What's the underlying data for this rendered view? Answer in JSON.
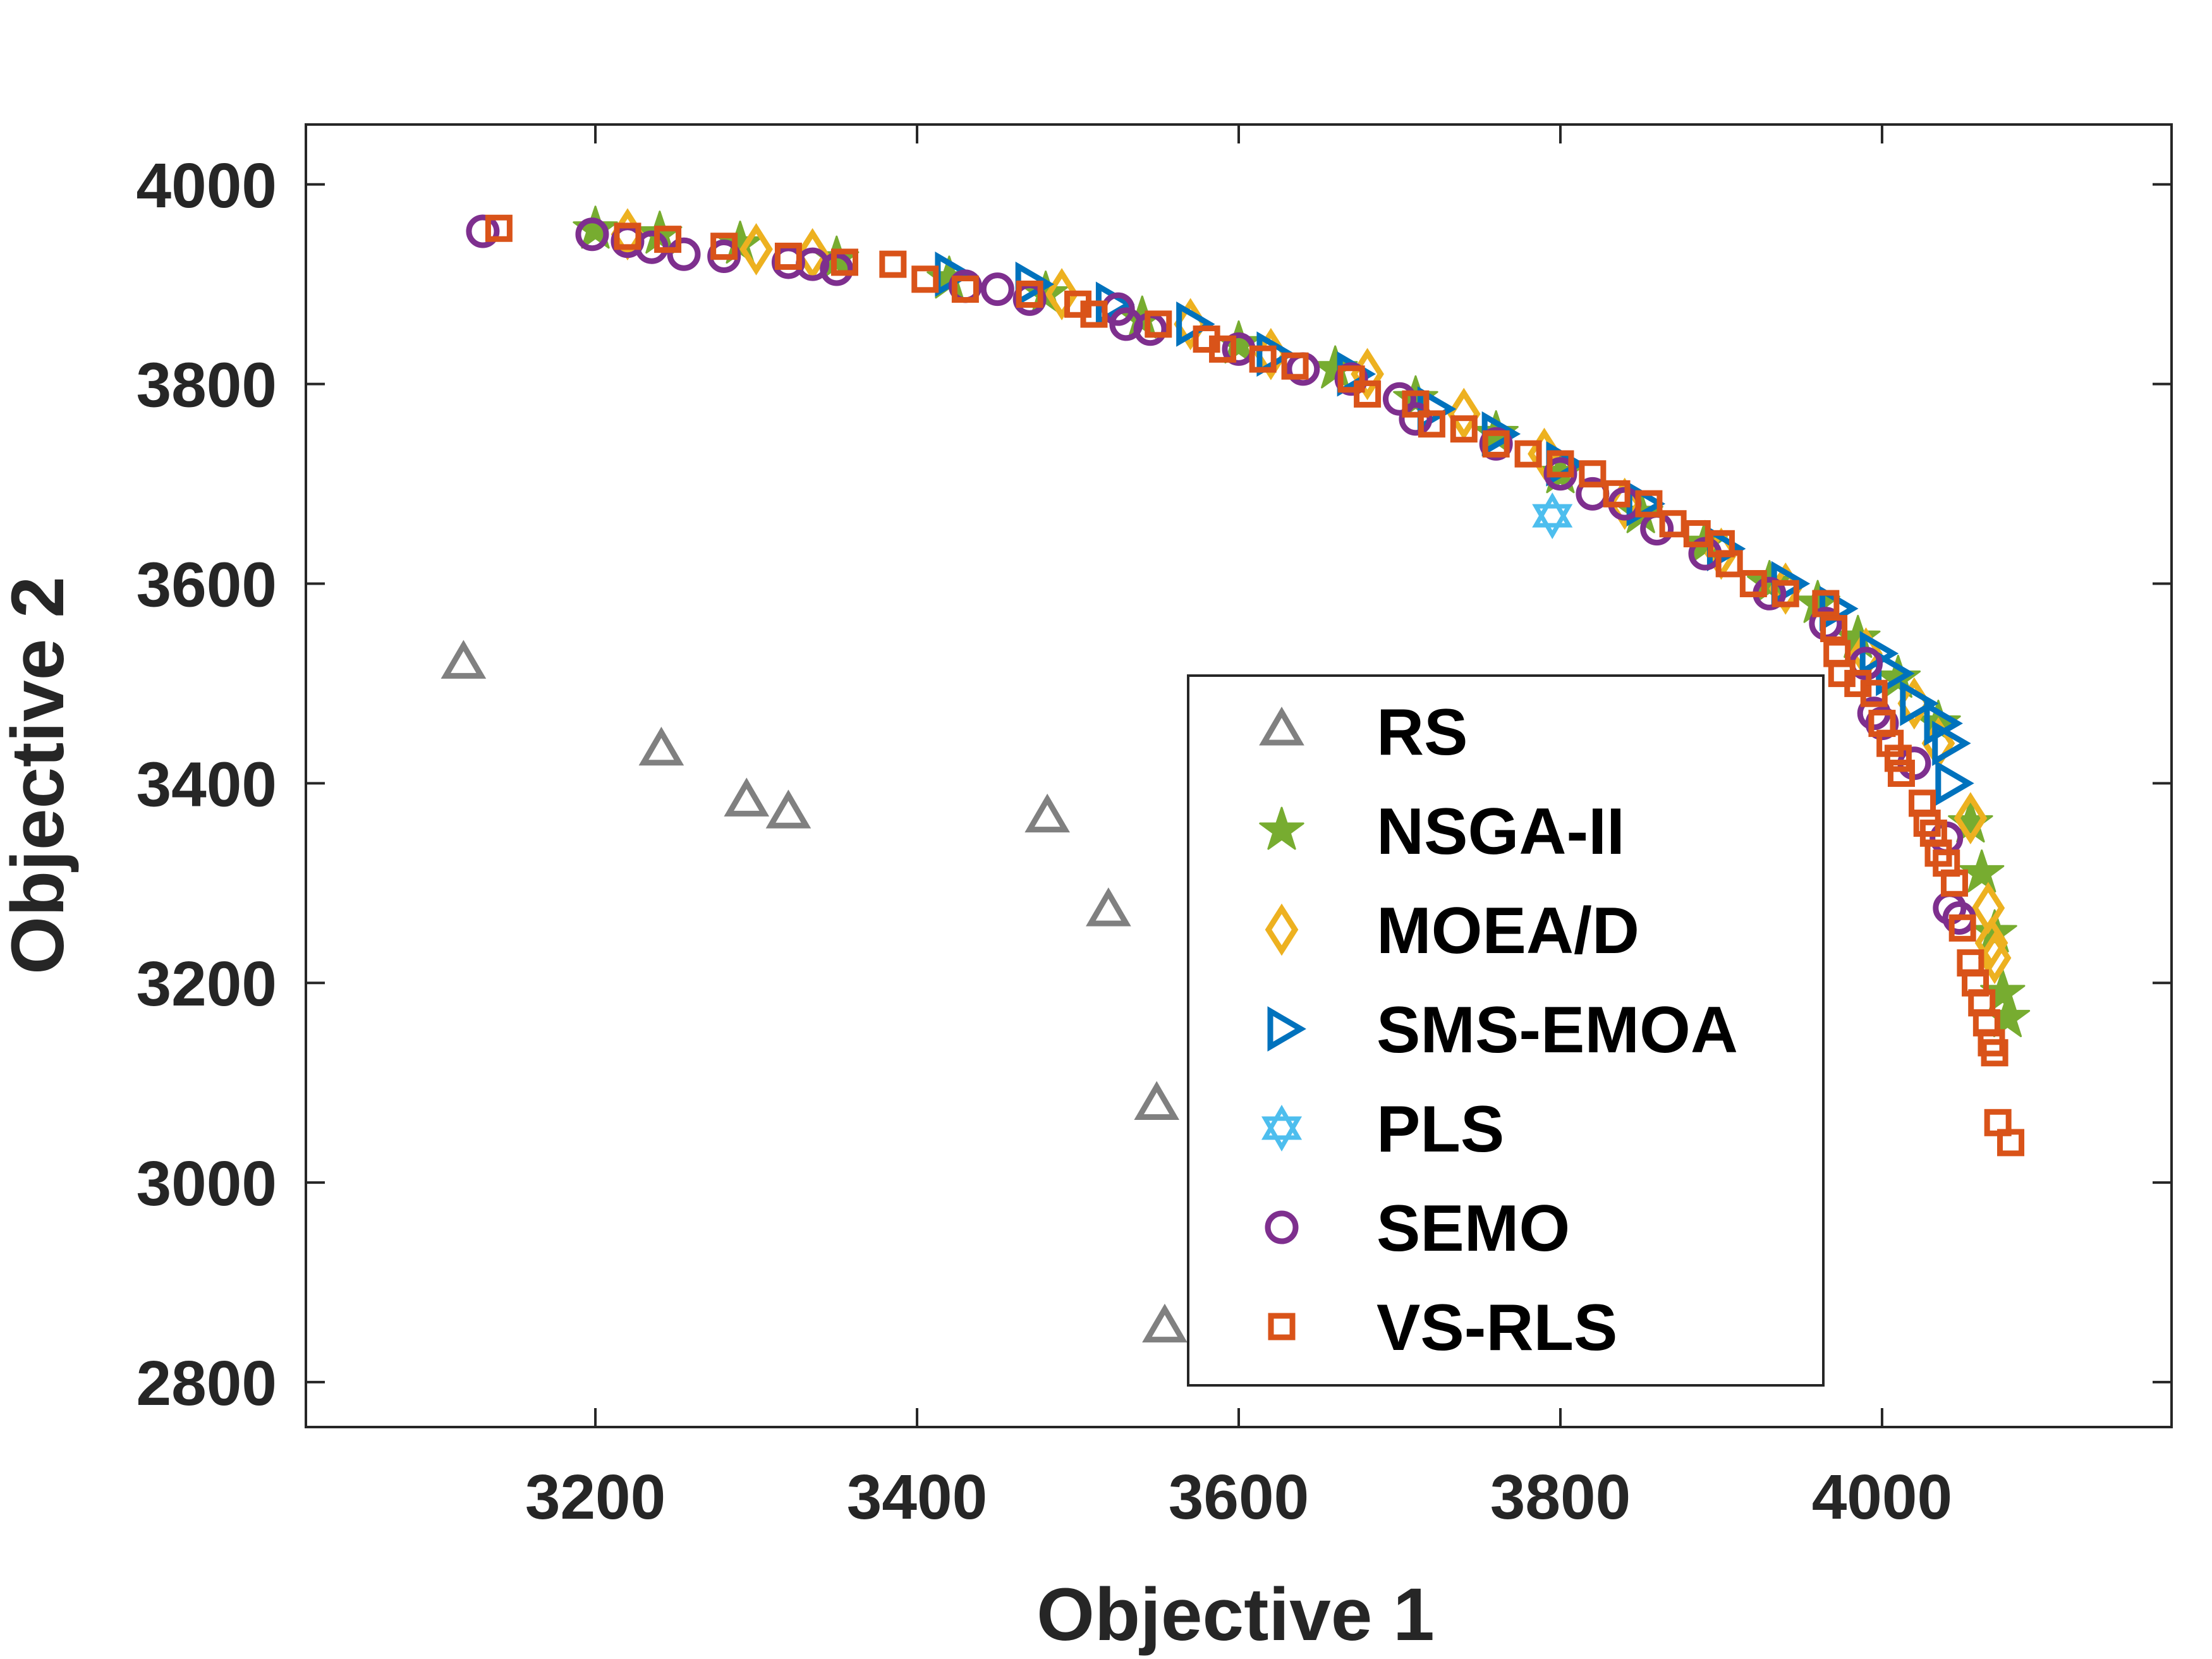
{
  "chart_data": {
    "type": "scatter",
    "title": "",
    "xlabel": "Objective 1",
    "ylabel": "Objective 2",
    "xlim": [
      3020,
      4180
    ],
    "ylim": [
      2755,
      4060
    ],
    "xticks": [
      3200,
      3400,
      3600,
      3800,
      4000
    ],
    "yticks": [
      2800,
      3000,
      3200,
      3400,
      3600,
      3800,
      4000
    ],
    "xtick_labels": [
      "3200",
      "3400",
      "3600",
      "3800",
      "4000"
    ],
    "ytick_labels": [
      "2800",
      "3000",
      "3200",
      "3400",
      "3600",
      "3800",
      "4000"
    ],
    "grid": false,
    "legend_position": "lower-right",
    "series": [
      {
        "name": "RS",
        "marker": "triangle-up",
        "color": "#808080",
        "points": [
          [
            3118,
            3519
          ],
          [
            3241,
            3432
          ],
          [
            3294,
            3381
          ],
          [
            3320,
            3369
          ],
          [
            3481,
            3365
          ],
          [
            3519,
            3271
          ],
          [
            3549,
            3077
          ],
          [
            3554,
            2854
          ]
        ]
      },
      {
        "name": "NSGA-II",
        "marker": "pentagram",
        "color": "#77AC30",
        "points": [
          [
            3200,
            3955
          ],
          [
            3240,
            3950
          ],
          [
            3290,
            3940
          ],
          [
            3350,
            3925
          ],
          [
            3420,
            3905
          ],
          [
            3480,
            3890
          ],
          [
            3540,
            3865
          ],
          [
            3600,
            3840
          ],
          [
            3660,
            3815
          ],
          [
            3710,
            3785
          ],
          [
            3760,
            3750
          ],
          [
            3800,
            3710
          ],
          [
            3850,
            3670
          ],
          [
            3890,
            3640
          ],
          [
            3930,
            3600
          ],
          [
            3960,
            3580
          ],
          [
            3985,
            3545
          ],
          [
            4010,
            3505
          ],
          [
            4035,
            3460
          ],
          [
            4055,
            3360
          ],
          [
            4062,
            3310
          ],
          [
            4070,
            3250
          ],
          [
            4075,
            3190
          ],
          [
            4078,
            3165
          ]
        ]
      },
      {
        "name": "MOEA/D",
        "marker": "diamond",
        "color": "#EDB120",
        "points": [
          [
            3220,
            3950
          ],
          [
            3300,
            3935
          ],
          [
            3335,
            3930
          ],
          [
            3490,
            3890
          ],
          [
            3570,
            3860
          ],
          [
            3620,
            3830
          ],
          [
            3680,
            3810
          ],
          [
            3740,
            3770
          ],
          [
            3790,
            3730
          ],
          [
            3840,
            3680
          ],
          [
            3900,
            3630
          ],
          [
            3940,
            3595
          ],
          [
            3990,
            3530
          ],
          [
            4020,
            3480
          ],
          [
            4035,
            3440
          ],
          [
            4055,
            3365
          ],
          [
            4066,
            3275
          ],
          [
            4068,
            3240
          ],
          [
            4070,
            3225
          ]
        ]
      },
      {
        "name": "SMS-EMOA",
        "marker": "triangle-right",
        "color": "#0072BD",
        "points": [
          [
            3420,
            3910
          ],
          [
            3470,
            3900
          ],
          [
            3520,
            3880
          ],
          [
            3570,
            3860
          ],
          [
            3620,
            3830
          ],
          [
            3670,
            3810
          ],
          [
            3720,
            3775
          ],
          [
            3760,
            3750
          ],
          [
            3800,
            3720
          ],
          [
            3850,
            3680
          ],
          [
            3900,
            3635
          ],
          [
            3940,
            3600
          ],
          [
            3970,
            3575
          ],
          [
            3995,
            3530
          ],
          [
            4005,
            3510
          ],
          [
            4020,
            3480
          ],
          [
            4035,
            3460
          ],
          [
            4040,
            3440
          ],
          [
            4042,
            3400
          ]
        ]
      },
      {
        "name": "PLS",
        "marker": "hexagram",
        "color": "#4DBEEE",
        "points": [
          [
            3795,
            3668
          ]
        ]
      },
      {
        "name": "SEMO",
        "marker": "circle",
        "color": "#7E2F8E",
        "points": [
          [
            3130,
            3953
          ],
          [
            3198,
            3950
          ],
          [
            3220,
            3943
          ],
          [
            3235,
            3937
          ],
          [
            3255,
            3930
          ],
          [
            3280,
            3928
          ],
          [
            3320,
            3922
          ],
          [
            3335,
            3920
          ],
          [
            3350,
            3915
          ],
          [
            3430,
            3898
          ],
          [
            3450,
            3895
          ],
          [
            3470,
            3885
          ],
          [
            3525,
            3875
          ],
          [
            3530,
            3860
          ],
          [
            3545,
            3855
          ],
          [
            3600,
            3835
          ],
          [
            3640,
            3815
          ],
          [
            3670,
            3805
          ],
          [
            3700,
            3785
          ],
          [
            3710,
            3765
          ],
          [
            3760,
            3740
          ],
          [
            3800,
            3710
          ],
          [
            3820,
            3690
          ],
          [
            3840,
            3680
          ],
          [
            3860,
            3655
          ],
          [
            3890,
            3630
          ],
          [
            3930,
            3590
          ],
          [
            3965,
            3560
          ],
          [
            3990,
            3520
          ],
          [
            3995,
            3470
          ],
          [
            4000,
            3460
          ],
          [
            4020,
            3420
          ],
          [
            4040,
            3345
          ],
          [
            4042,
            3275
          ],
          [
            4048,
            3265
          ]
        ]
      },
      {
        "name": "VS-RLS",
        "marker": "square",
        "color": "#D95319",
        "points": [
          [
            3140,
            3956
          ],
          [
            3220,
            3948
          ],
          [
            3245,
            3945
          ],
          [
            3280,
            3938
          ],
          [
            3320,
            3928
          ],
          [
            3355,
            3922
          ],
          [
            3385,
            3920
          ],
          [
            3405,
            3905
          ],
          [
            3430,
            3895
          ],
          [
            3470,
            3890
          ],
          [
            3500,
            3880
          ],
          [
            3510,
            3870
          ],
          [
            3550,
            3860
          ],
          [
            3580,
            3845
          ],
          [
            3590,
            3835
          ],
          [
            3615,
            3825
          ],
          [
            3635,
            3818
          ],
          [
            3670,
            3805
          ],
          [
            3680,
            3790
          ],
          [
            3710,
            3780
          ],
          [
            3720,
            3760
          ],
          [
            3740,
            3755
          ],
          [
            3760,
            3740
          ],
          [
            3780,
            3730
          ],
          [
            3800,
            3720
          ],
          [
            3820,
            3710
          ],
          [
            3835,
            3690
          ],
          [
            3855,
            3680
          ],
          [
            3870,
            3660
          ],
          [
            3885,
            3650
          ],
          [
            3900,
            3640
          ],
          [
            3905,
            3620
          ],
          [
            3920,
            3600
          ],
          [
            3940,
            3590
          ],
          [
            3965,
            3580
          ],
          [
            3970,
            3555
          ],
          [
            3972,
            3530
          ],
          [
            3975,
            3510
          ],
          [
            3985,
            3500
          ],
          [
            3995,
            3490
          ],
          [
            4000,
            3460
          ],
          [
            4005,
            3440
          ],
          [
            4010,
            3425
          ],
          [
            4012,
            3410
          ],
          [
            4025,
            3380
          ],
          [
            4028,
            3360
          ],
          [
            4032,
            3350
          ],
          [
            4035,
            3330
          ],
          [
            4040,
            3320
          ],
          [
            4045,
            3300
          ],
          [
            4050,
            3255
          ],
          [
            4055,
            3220
          ],
          [
            4058,
            3200
          ],
          [
            4062,
            3180
          ],
          [
            4065,
            3160
          ],
          [
            4068,
            3140
          ],
          [
            4070,
            3130
          ],
          [
            4072,
            3060
          ],
          [
            4080,
            3040
          ]
        ]
      }
    ]
  }
}
